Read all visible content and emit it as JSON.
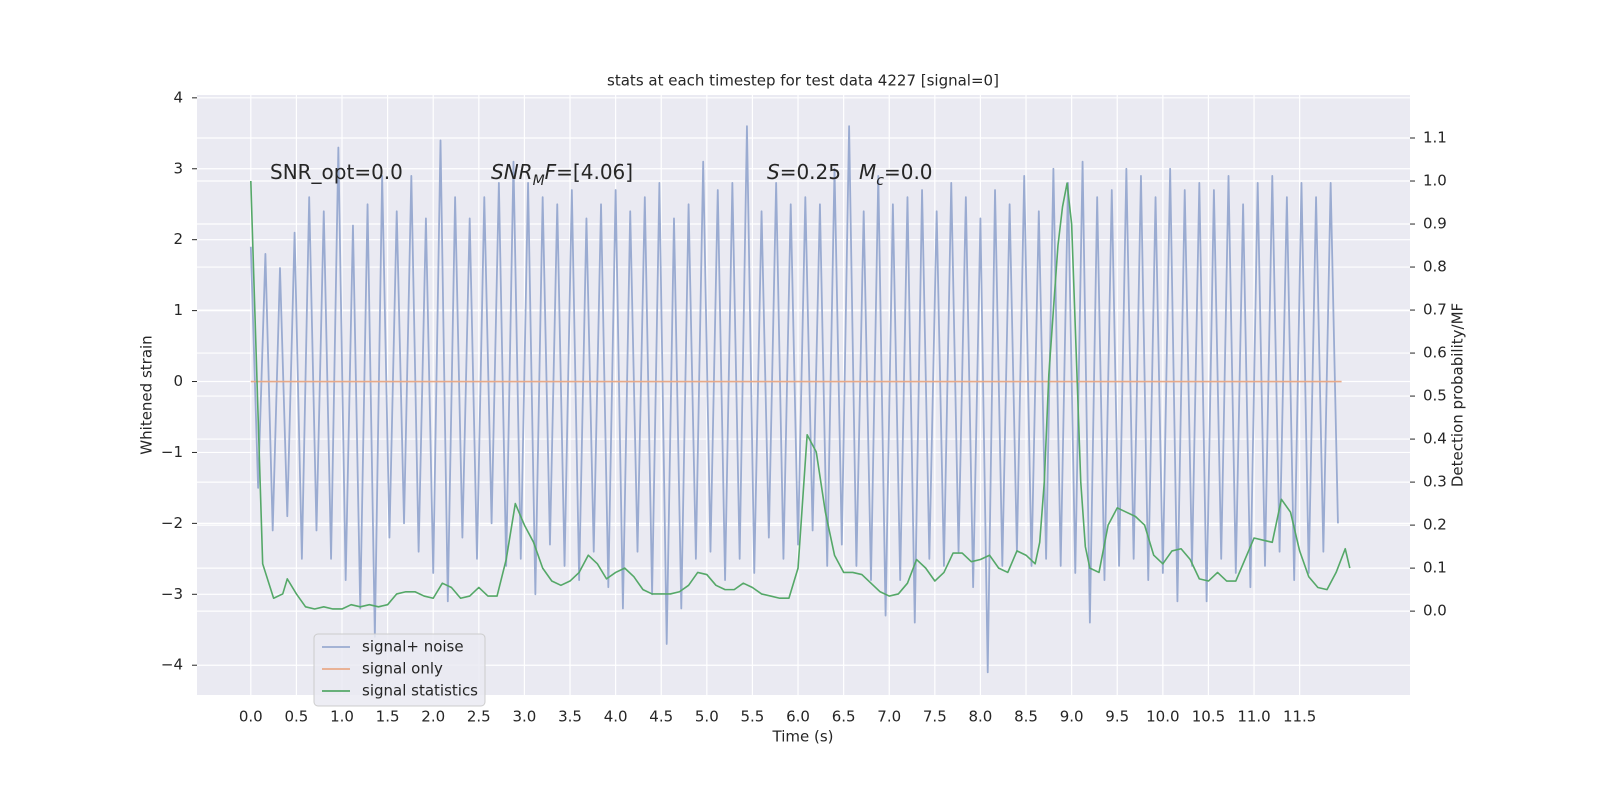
{
  "chart_data": {
    "type": "line",
    "title": "stats at each timestep for test data 4227 [signal=0]",
    "x_label": "Time (s)",
    "y_label": "Whitened strain",
    "y2_label": "Detection probability/MF",
    "xlim": [
      -0.59,
      12.71
    ],
    "ylim": [
      -4.42,
      4.04
    ],
    "y2lim": [
      -0.195,
      1.2
    ],
    "xticks": [
      {
        "value": 0,
        "label": "0.0"
      },
      0.5,
      {
        "value": 1,
        "label": "1.0"
      },
      1.5,
      {
        "value": 2,
        "label": "2.0"
      },
      2.5,
      {
        "value": 3,
        "label": "3.0"
      },
      3.5,
      {
        "value": 4,
        "label": "4.0"
      },
      4.5,
      {
        "value": 5,
        "label": "5.0"
      },
      5.5,
      {
        "value": 6,
        "label": "6.0"
      },
      6.5,
      {
        "value": 7,
        "label": "7.0"
      },
      7.5,
      {
        "value": 8,
        "label": "8.0"
      },
      8.5,
      {
        "value": 9,
        "label": "9.0"
      },
      9.5,
      {
        "value": 10,
        "label": "10.0"
      },
      10.5,
      {
        "value": 11,
        "label": "11.0"
      },
      11.5
    ],
    "yticks": [
      {
        "value": -4,
        "label": "−4"
      },
      {
        "value": -3,
        "label": "−3"
      },
      {
        "value": -2,
        "label": "−2"
      },
      {
        "value": -1,
        "label": "−1"
      },
      0,
      1,
      2,
      3,
      4
    ],
    "y2ticks": [
      {
        "value": 0,
        "label": "0.0"
      },
      0.1,
      0.2,
      0.3,
      0.4,
      0.5,
      0.6,
      0.7,
      0.8,
      0.9,
      {
        "value": 1,
        "label": "1.0"
      },
      1.1
    ],
    "grid": true,
    "legend": "lower left",
    "annotations": [
      [
        {
          "text": "SNR_opt=0.0"
        }
      ],
      [
        {
          "text": "SNR",
          "italic": true
        },
        {
          "text": "M",
          "italic": true,
          "sub": true
        },
        {
          "text": "F",
          "italic": true
        },
        {
          "text": "=[4.06]"
        }
      ],
      [
        {
          "text": "S",
          "italic": true
        },
        {
          "text": "=0.25"
        }
      ],
      [
        {
          "text": "M",
          "italic": true
        },
        {
          "text": "c",
          "italic": true,
          "sub": true
        },
        {
          "text": "=0.0"
        }
      ]
    ],
    "series": [
      {
        "name": "signal+ noise",
        "color": "#9aabd1",
        "x": [
          0,
          0.08,
          0.16,
          0.24,
          0.32,
          0.4,
          0.48,
          0.56,
          0.64,
          0.72,
          0.8,
          0.88,
          0.96,
          1.04,
          1.12,
          1.2,
          1.28,
          1.36,
          1.44,
          1.52,
          1.6,
          1.68,
          1.76,
          1.84,
          1.92,
          2,
          2.08,
          2.16,
          2.24,
          2.32,
          2.4,
          2.48,
          2.56,
          2.64,
          2.72,
          2.8,
          2.88,
          2.96,
          3.04,
          3.12,
          3.2,
          3.28,
          3.36,
          3.44,
          3.52,
          3.6,
          3.68,
          3.76,
          3.84,
          3.92,
          4,
          4.08,
          4.16,
          4.24,
          4.32,
          4.4,
          4.48,
          4.56,
          4.64,
          4.72,
          4.8,
          4.88,
          4.96,
          5.04,
          5.12,
          5.2,
          5.28,
          5.36,
          5.44,
          5.52,
          5.6,
          5.68,
          5.76,
          5.84,
          5.92,
          6,
          6.08,
          6.16,
          6.24,
          6.32,
          6.4,
          6.48,
          6.56,
          6.64,
          6.72,
          6.8,
          6.88,
          6.96,
          7.04,
          7.12,
          7.2,
          7.28,
          7.36,
          7.44,
          7.52,
          7.6,
          7.68,
          7.76,
          7.84,
          7.92,
          8,
          8.08,
          8.16,
          8.24,
          8.32,
          8.4,
          8.48,
          8.56,
          8.64,
          8.72,
          8.8,
          8.88,
          8.96,
          9.04,
          9.12,
          9.2,
          9.28,
          9.36,
          9.44,
          9.52,
          9.6,
          9.68,
          9.76,
          9.84,
          9.92,
          10,
          10.08,
          10.16,
          10.24,
          10.32,
          10.4,
          10.48,
          10.56,
          10.64,
          10.72,
          10.8,
          10.88,
          10.96,
          11.04,
          11.12,
          11.2,
          11.28,
          11.36,
          11.44,
          11.52,
          11.6,
          11.68,
          11.76,
          11.84,
          11.92
        ],
        "values": [
          1.9,
          -1.5,
          1.8,
          -2.1,
          1.6,
          -1.9,
          2.1,
          -2.5,
          2.6,
          -2.1,
          2.4,
          -2.5,
          3.3,
          -2.8,
          2.2,
          -3.2,
          2.5,
          -3.6,
          2.9,
          -2.2,
          2.4,
          -2.0,
          2.9,
          -2.4,
          2.3,
          -2.7,
          3.4,
          -3.1,
          2.6,
          -2.2,
          2.3,
          -2.5,
          2.6,
          -2.0,
          2.8,
          -2.6,
          3.1,
          -2.5,
          2.8,
          -3.0,
          2.6,
          -2.3,
          2.5,
          -2.6,
          2.7,
          -2.8,
          2.3,
          -2.4,
          2.5,
          -2.9,
          2.7,
          -3.2,
          2.4,
          -2.4,
          2.6,
          -3.0,
          2.8,
          -3.7,
          2.3,
          -3.2,
          2.5,
          -2.5,
          3.1,
          -2.4,
          2.7,
          -2.8,
          2.8,
          -2.5,
          3.6,
          -2.7,
          2.4,
          -2.2,
          2.8,
          -2.5,
          2.5,
          -2.3,
          2.6,
          -2.1,
          2.5,
          -2.6,
          3.0,
          -2.3,
          3.6,
          -2.6,
          2.4,
          -2.8,
          2.9,
          -3.3,
          2.5,
          -2.8,
          2.6,
          -3.4,
          2.7,
          -2.5,
          2.4,
          -2.6,
          2.8,
          -2.4,
          2.6,
          -2.9,
          2.3,
          -4.1,
          2.7,
          -2.6,
          2.5,
          -2.4,
          2.9,
          -2.6,
          2.4,
          -2.5,
          3.0,
          -2.6,
          2.8,
          -2.7,
          3.1,
          -3.4,
          2.6,
          -2.8,
          2.7,
          -2.6,
          3.0,
          -2.5,
          2.9,
          -2.8,
          2.6,
          -2.7,
          3.0,
          -3.1,
          2.7,
          -2.6,
          2.8,
          -3.1,
          2.7,
          -2.5,
          2.9,
          -2.7,
          2.5,
          -2.9,
          2.8,
          -2.6,
          2.9,
          -2.4,
          2.6,
          -2.8,
          2.8,
          -2.7,
          2.6,
          -2.4,
          2.8,
          -2.0
        ]
      },
      {
        "name": "signal only",
        "color": "#e9aa88",
        "x": [
          0,
          11.96
        ],
        "values": [
          0,
          0
        ]
      },
      {
        "name": "signal statistics",
        "color": "#55a868",
        "axis": "y2",
        "x": [
          0,
          0.13,
          0.25,
          0.35,
          0.4,
          0.5,
          0.6,
          0.7,
          0.8,
          0.9,
          1,
          1.1,
          1.2,
          1.3,
          1.4,
          1.5,
          1.6,
          1.7,
          1.8,
          1.9,
          2,
          2.1,
          2.2,
          2.3,
          2.4,
          2.5,
          2.6,
          2.7,
          2.8,
          2.9,
          3,
          3.1,
          3.2,
          3.3,
          3.4,
          3.5,
          3.6,
          3.7,
          3.8,
          3.9,
          4,
          4.1,
          4.2,
          4.3,
          4.4,
          4.5,
          4.6,
          4.7,
          4.8,
          4.9,
          5,
          5.1,
          5.2,
          5.3,
          5.4,
          5.5,
          5.6,
          5.7,
          5.8,
          5.9,
          6,
          6.1,
          6.2,
          6.3,
          6.4,
          6.5,
          6.6,
          6.7,
          6.8,
          6.9,
          7,
          7.1,
          7.2,
          7.3,
          7.4,
          7.5,
          7.6,
          7.7,
          7.8,
          7.9,
          8,
          8.1,
          8.2,
          8.3,
          8.4,
          8.5,
          8.6,
          8.65,
          8.7,
          8.75,
          8.8,
          8.85,
          8.9,
          8.95,
          9,
          9.05,
          9.1,
          9.15,
          9.2,
          9.3,
          9.4,
          9.5,
          9.6,
          9.7,
          9.8,
          9.9,
          10,
          10.1,
          10.2,
          10.3,
          10.4,
          10.5,
          10.6,
          10.7,
          10.8,
          10.9,
          11,
          11.1,
          11.2,
          11.3,
          11.4,
          11.5,
          11.6,
          11.7,
          11.8,
          11.9,
          12,
          12.05
        ],
        "values": [
          1.0,
          0.11,
          0.03,
          0.04,
          0.075,
          0.04,
          0.01,
          0.005,
          0.01,
          0.005,
          0.005,
          0.015,
          0.01,
          0.015,
          0.01,
          0.015,
          0.04,
          0.045,
          0.045,
          0.035,
          0.03,
          0.065,
          0.055,
          0.03,
          0.035,
          0.055,
          0.035,
          0.035,
          0.12,
          0.25,
          0.2,
          0.16,
          0.1,
          0.07,
          0.06,
          0.07,
          0.09,
          0.13,
          0.11,
          0.075,
          0.09,
          0.1,
          0.08,
          0.05,
          0.04,
          0.04,
          0.04,
          0.045,
          0.06,
          0.09,
          0.085,
          0.06,
          0.05,
          0.05,
          0.065,
          0.055,
          0.04,
          0.035,
          0.03,
          0.03,
          0.1,
          0.41,
          0.37,
          0.23,
          0.13,
          0.09,
          0.09,
          0.085,
          0.065,
          0.045,
          0.035,
          0.04,
          0.065,
          0.12,
          0.1,
          0.07,
          0.09,
          0.135,
          0.135,
          0.115,
          0.12,
          0.13,
          0.1,
          0.09,
          0.14,
          0.13,
          0.11,
          0.16,
          0.3,
          0.55,
          0.7,
          0.85,
          0.94,
          0.995,
          0.9,
          0.6,
          0.3,
          0.15,
          0.1,
          0.09,
          0.2,
          0.24,
          0.23,
          0.22,
          0.2,
          0.13,
          0.11,
          0.14,
          0.145,
          0.12,
          0.075,
          0.07,
          0.09,
          0.07,
          0.07,
          0.12,
          0.17,
          0.165,
          0.16,
          0.26,
          0.23,
          0.14,
          0.08,
          0.055,
          0.05,
          0.09,
          0.145,
          0.1
        ]
      }
    ]
  }
}
